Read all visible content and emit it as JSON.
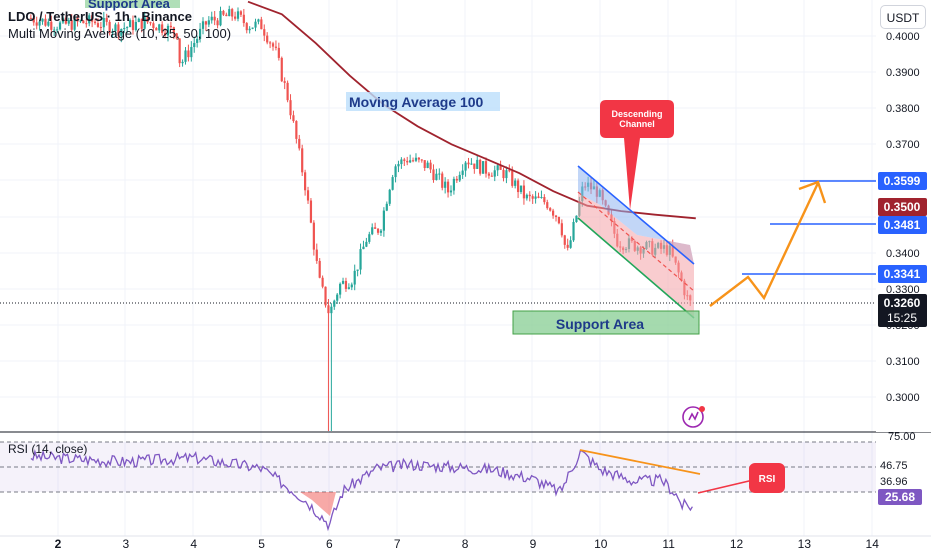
{
  "header": {
    "title": "LDO / TetherUS · 1h · Binance",
    "indicator": "Multi Moving Average (10, 25, 50, 100)",
    "currency_button": "USDT"
  },
  "rsi": {
    "label": "RSI (14, close)",
    "levels": [
      "75.00",
      "46.75",
      "36.96"
    ],
    "current": "25.68",
    "callout": "RSI"
  },
  "annotations": {
    "support_top": "Support Area",
    "ma_label": "Moving Average 100",
    "channel_label": "Descending Channel",
    "support_bottom": "Support Area"
  },
  "price_axis": {
    "ticks": [
      "0.4000",
      "0.3900",
      "0.3800",
      "0.3700",
      "0.3400",
      "0.3300",
      "0.3200",
      "0.3100",
      "0.3000"
    ]
  },
  "badges": {
    "t3599": "0.3599",
    "t3500": "0.3500",
    "t3481": "0.3481",
    "t3341": "0.3341",
    "current_price": "0.3260",
    "countdown": "15:25"
  },
  "time_axis": {
    "ticks": [
      "2",
      "3",
      "4",
      "5",
      "6",
      "7",
      "8",
      "9",
      "10",
      "11",
      "12",
      "13",
      "14"
    ]
  },
  "colors": {
    "bull": "#26a69a",
    "bear": "#ef5350",
    "ma": "#a0232e",
    "blue_line": "#2962ff",
    "forecast": "#f7931a",
    "rsi_line": "#7e57c2",
    "support_fill": "#8fd19a",
    "channel_fill": "#90b4f0"
  },
  "chart_data": {
    "type": "candlestick",
    "title": "LDO / TetherUS · 1h · Binance",
    "x_ticks": [
      "2",
      "3",
      "4",
      "5",
      "6",
      "7",
      "8",
      "9",
      "10",
      "11",
      "12",
      "13",
      "14"
    ],
    "ylim": [
      0.295,
      0.41
    ],
    "price_series": [
      {
        "x": 1.6,
        "close": 0.405
      },
      {
        "x": 2.0,
        "close": 0.403
      },
      {
        "x": 2.5,
        "close": 0.404
      },
      {
        "x": 2.9,
        "close": 0.402
      },
      {
        "x": 3.3,
        "close": 0.404
      },
      {
        "x": 3.75,
        "close": 0.401
      },
      {
        "x": 3.8,
        "close": 0.392
      },
      {
        "x": 4.2,
        "close": 0.404
      },
      {
        "x": 4.6,
        "close": 0.406
      },
      {
        "x": 4.8,
        "close": 0.403
      },
      {
        "x": 5.0,
        "close": 0.403
      },
      {
        "x": 5.2,
        "close": 0.396
      },
      {
        "x": 5.4,
        "close": 0.382
      },
      {
        "x": 5.65,
        "close": 0.358
      },
      {
        "x": 5.85,
        "close": 0.332
      },
      {
        "x": 6.0,
        "close": 0.323
      },
      {
        "x": 6.15,
        "close": 0.331
      },
      {
        "x": 6.35,
        "close": 0.333
      },
      {
        "x": 6.55,
        "close": 0.344
      },
      {
        "x": 6.75,
        "close": 0.347
      },
      {
        "x": 6.95,
        "close": 0.364
      },
      {
        "x": 7.15,
        "close": 0.366
      },
      {
        "x": 7.45,
        "close": 0.364
      },
      {
        "x": 7.75,
        "close": 0.357
      },
      {
        "x": 8.0,
        "close": 0.366
      },
      {
        "x": 8.3,
        "close": 0.363
      },
      {
        "x": 8.6,
        "close": 0.362
      },
      {
        "x": 8.9,
        "close": 0.355
      },
      {
        "x": 9.2,
        "close": 0.354
      },
      {
        "x": 9.4,
        "close": 0.349
      },
      {
        "x": 9.5,
        "close": 0.339
      },
      {
        "x": 9.6,
        "close": 0.347
      },
      {
        "x": 9.75,
        "close": 0.359
      },
      {
        "x": 9.95,
        "close": 0.357
      },
      {
        "x": 10.25,
        "close": 0.343
      },
      {
        "x": 10.5,
        "close": 0.342
      },
      {
        "x": 10.8,
        "close": 0.341
      },
      {
        "x": 11.0,
        "close": 0.341
      },
      {
        "x": 11.15,
        "close": 0.334
      },
      {
        "x": 11.3,
        "close": 0.326
      }
    ],
    "moving_average_100": [
      {
        "x": 4.8,
        "y": 0.4095
      },
      {
        "x": 5.3,
        "y": 0.406
      },
      {
        "x": 5.8,
        "y": 0.398
      },
      {
        "x": 6.3,
        "y": 0.389
      },
      {
        "x": 6.8,
        "y": 0.381
      },
      {
        "x": 7.3,
        "y": 0.375
      },
      {
        "x": 7.8,
        "y": 0.37
      },
      {
        "x": 8.3,
        "y": 0.366
      },
      {
        "x": 8.8,
        "y": 0.362
      },
      {
        "x": 9.3,
        "y": 0.357
      },
      {
        "x": 9.8,
        "y": 0.353
      },
      {
        "x": 10.3,
        "y": 0.3515
      },
      {
        "x": 10.8,
        "y": 0.3505
      },
      {
        "x": 11.4,
        "y": 0.3495
      }
    ],
    "rsi_series": [
      {
        "x": 1.6,
        "y": 64
      },
      {
        "x": 3.0,
        "y": 60
      },
      {
        "x": 4.0,
        "y": 63
      },
      {
        "x": 5.0,
        "y": 55
      },
      {
        "x": 5.6,
        "y": 33
      },
      {
        "x": 5.9,
        "y": 18
      },
      {
        "x": 6.0,
        "y": 12
      },
      {
        "x": 6.2,
        "y": 38
      },
      {
        "x": 6.7,
        "y": 55
      },
      {
        "x": 7.2,
        "y": 58
      },
      {
        "x": 7.8,
        "y": 56
      },
      {
        "x": 8.4,
        "y": 54
      },
      {
        "x": 9.0,
        "y": 47
      },
      {
        "x": 9.4,
        "y": 37
      },
      {
        "x": 9.7,
        "y": 68
      },
      {
        "x": 10.0,
        "y": 54
      },
      {
        "x": 10.5,
        "y": 45
      },
      {
        "x": 10.9,
        "y": 46
      },
      {
        "x": 11.1,
        "y": 36
      },
      {
        "x": 11.2,
        "y": 27
      },
      {
        "x": 11.35,
        "y": 26
      }
    ]
  }
}
